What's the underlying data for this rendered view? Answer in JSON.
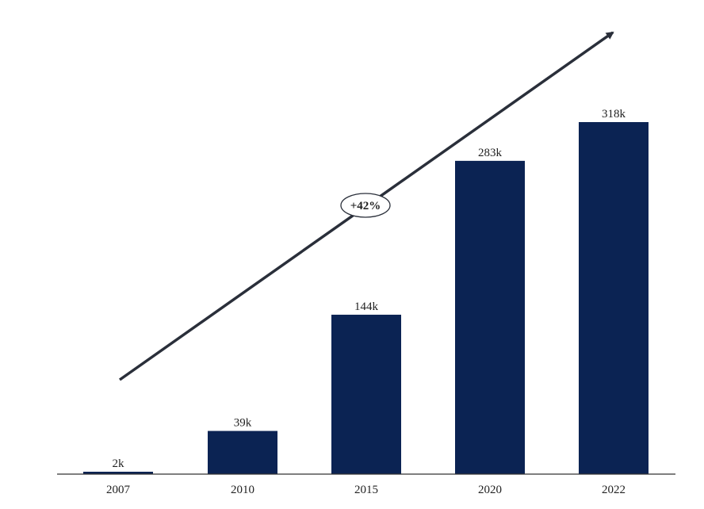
{
  "chart_data": {
    "type": "bar",
    "categories": [
      "2007",
      "2010",
      "2015",
      "2020",
      "2022"
    ],
    "values": [
      2,
      39,
      144,
      283,
      318
    ],
    "value_labels": [
      "2k",
      "39k",
      "144k",
      "283k",
      "318k"
    ],
    "title": "",
    "xlabel": "",
    "ylabel": "",
    "ylim": [
      0,
      350
    ],
    "grid": false,
    "legend": "none",
    "bar_color": "#0b2353",
    "annotation": {
      "label": "+42%",
      "type": "growth-arrow"
    }
  }
}
